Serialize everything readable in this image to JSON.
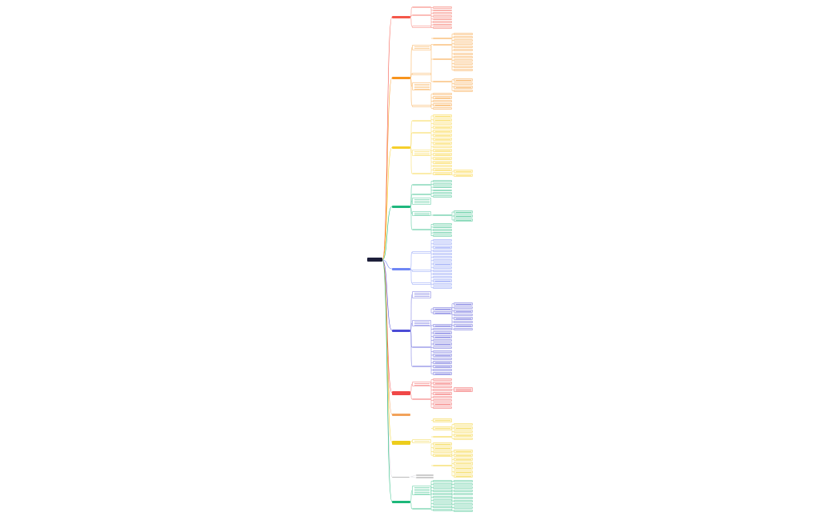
{
  "root": {
    "label": "",
    "color": "#1d1f3a"
  },
  "branches": [
    {
      "label": "",
      "color": "#f5574a",
      "bg": "#fde4e1"
    },
    {
      "label": "",
      "color": "#f7941d",
      "bg": "#feefdf"
    },
    {
      "label": "",
      "color": "#f6cf2b",
      "bg": "#fff7d9"
    },
    {
      "label": "",
      "color": "#1fb77d",
      "bg": "#ddf4ea"
    },
    {
      "label": "",
      "color": "#6f86f5",
      "bg": "#e7eafd"
    },
    {
      "label": "",
      "color": "#4b4bd6",
      "bg": "#e4e4f8"
    },
    {
      "label": "",
      "color": "#f04848",
      "bg": "#fde2e2"
    },
    {
      "label": "",
      "color": "#f2a25a",
      "bg": "#feefdf"
    },
    {
      "label": "",
      "color": "#edcd1c",
      "bg": "#fff7d9"
    },
    {
      "label": "",
      "color": "#cfcfd6",
      "bg": "#ececf0"
    },
    {
      "label": "",
      "color": "#1db87a",
      "bg": "#ddf4ea"
    }
  ]
}
